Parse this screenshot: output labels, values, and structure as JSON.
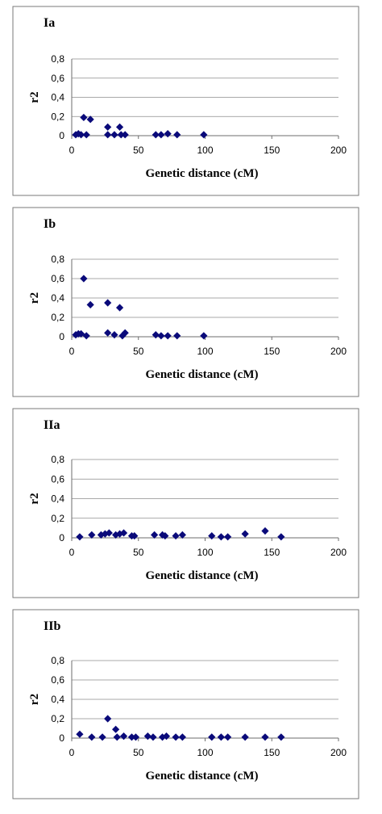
{
  "chart_data": [
    {
      "type": "scatter",
      "title": "Ia",
      "xlabel": "Genetic distance (cM)",
      "ylabel": "r2",
      "xlim": [
        0,
        200
      ],
      "ylim": [
        0,
        0.8
      ],
      "xticks": [
        "0",
        "50",
        "100",
        "150",
        "200"
      ],
      "yticks": [
        "0",
        "0,2",
        "0,4",
        "0,6",
        "0,8"
      ],
      "grid": true,
      "marker_color": "#0a0a7a",
      "points": [
        {
          "x": 3,
          "y": 0.01
        },
        {
          "x": 5,
          "y": 0.02
        },
        {
          "x": 7,
          "y": 0.01
        },
        {
          "x": 9,
          "y": 0.19
        },
        {
          "x": 11,
          "y": 0.01
        },
        {
          "x": 14,
          "y": 0.17
        },
        {
          "x": 27,
          "y": 0.09
        },
        {
          "x": 27,
          "y": 0.01
        },
        {
          "x": 32,
          "y": 0.01
        },
        {
          "x": 36,
          "y": 0.09
        },
        {
          "x": 37,
          "y": 0.01
        },
        {
          "x": 40,
          "y": 0.01
        },
        {
          "x": 63,
          "y": 0.01
        },
        {
          "x": 67,
          "y": 0.01
        },
        {
          "x": 72,
          "y": 0.02
        },
        {
          "x": 79,
          "y": 0.01
        },
        {
          "x": 99,
          "y": 0.01
        }
      ]
    },
    {
      "type": "scatter",
      "title": "Ib",
      "xlabel": "Genetic distance (cM)",
      "ylabel": "r2",
      "xlim": [
        0,
        200
      ],
      "ylim": [
        0,
        0.8
      ],
      "xticks": [
        "0",
        "50",
        "100",
        "150",
        "200"
      ],
      "yticks": [
        "0",
        "0,2",
        "0,4",
        "0,6",
        "0,8"
      ],
      "grid": true,
      "marker_color": "#0a0a7a",
      "points": [
        {
          "x": 3,
          "y": 0.02
        },
        {
          "x": 5,
          "y": 0.03
        },
        {
          "x": 7,
          "y": 0.03
        },
        {
          "x": 9,
          "y": 0.6
        },
        {
          "x": 11,
          "y": 0.01
        },
        {
          "x": 14,
          "y": 0.33
        },
        {
          "x": 27,
          "y": 0.35
        },
        {
          "x": 27,
          "y": 0.04
        },
        {
          "x": 32,
          "y": 0.02
        },
        {
          "x": 36,
          "y": 0.3
        },
        {
          "x": 38,
          "y": 0.01
        },
        {
          "x": 40,
          "y": 0.04
        },
        {
          "x": 63,
          "y": 0.02
        },
        {
          "x": 67,
          "y": 0.01
        },
        {
          "x": 72,
          "y": 0.01
        },
        {
          "x": 79,
          "y": 0.01
        },
        {
          "x": 99,
          "y": 0.01
        }
      ]
    },
    {
      "type": "scatter",
      "title": "IIa",
      "xlabel": "Genetic distance (cM)",
      "ylabel": "r2",
      "xlim": [
        0,
        200
      ],
      "ylim": [
        0,
        0.8
      ],
      "xticks": [
        "0",
        "50",
        "100",
        "150",
        "200"
      ],
      "yticks": [
        "0",
        "0,2",
        "0,4",
        "0,6",
        "0,8"
      ],
      "grid": true,
      "marker_color": "#0a0a7a",
      "points": [
        {
          "x": 6,
          "y": 0.01
        },
        {
          "x": 15,
          "y": 0.03
        },
        {
          "x": 22,
          "y": 0.03
        },
        {
          "x": 25,
          "y": 0.04
        },
        {
          "x": 28,
          "y": 0.05
        },
        {
          "x": 33,
          "y": 0.03
        },
        {
          "x": 36,
          "y": 0.04
        },
        {
          "x": 39,
          "y": 0.05
        },
        {
          "x": 45,
          "y": 0.02
        },
        {
          "x": 47,
          "y": 0.02
        },
        {
          "x": 62,
          "y": 0.03
        },
        {
          "x": 68,
          "y": 0.03
        },
        {
          "x": 70,
          "y": 0.02
        },
        {
          "x": 78,
          "y": 0.02
        },
        {
          "x": 83,
          "y": 0.03
        },
        {
          "x": 105,
          "y": 0.02
        },
        {
          "x": 112,
          "y": 0.01
        },
        {
          "x": 117,
          "y": 0.01
        },
        {
          "x": 130,
          "y": 0.04
        },
        {
          "x": 145,
          "y": 0.07
        },
        {
          "x": 157,
          "y": 0.01
        }
      ]
    },
    {
      "type": "scatter",
      "title": "IIb",
      "xlabel": "Genetic distance (cM)",
      "ylabel": "r2",
      "xlim": [
        0,
        200
      ],
      "ylim": [
        0,
        0.8
      ],
      "xticks": [
        "0",
        "50",
        "100",
        "150",
        "200"
      ],
      "yticks": [
        "0",
        "0,2",
        "0,4",
        "0,6",
        "0,8"
      ],
      "grid": true,
      "marker_color": "#0a0a7a",
      "points": [
        {
          "x": 6,
          "y": 0.04
        },
        {
          "x": 15,
          "y": 0.01
        },
        {
          "x": 23,
          "y": 0.01
        },
        {
          "x": 27,
          "y": 0.2
        },
        {
          "x": 33,
          "y": 0.09
        },
        {
          "x": 34,
          "y": 0.01
        },
        {
          "x": 39,
          "y": 0.02
        },
        {
          "x": 45,
          "y": 0.01
        },
        {
          "x": 48,
          "y": 0.01
        },
        {
          "x": 57,
          "y": 0.02
        },
        {
          "x": 61,
          "y": 0.01
        },
        {
          "x": 68,
          "y": 0.01
        },
        {
          "x": 71,
          "y": 0.02
        },
        {
          "x": 78,
          "y": 0.01
        },
        {
          "x": 83,
          "y": 0.01
        },
        {
          "x": 105,
          "y": 0.01
        },
        {
          "x": 112,
          "y": 0.01
        },
        {
          "x": 117,
          "y": 0.01
        },
        {
          "x": 130,
          "y": 0.01
        },
        {
          "x": 145,
          "y": 0.01
        },
        {
          "x": 157,
          "y": 0.01
        }
      ]
    }
  ]
}
